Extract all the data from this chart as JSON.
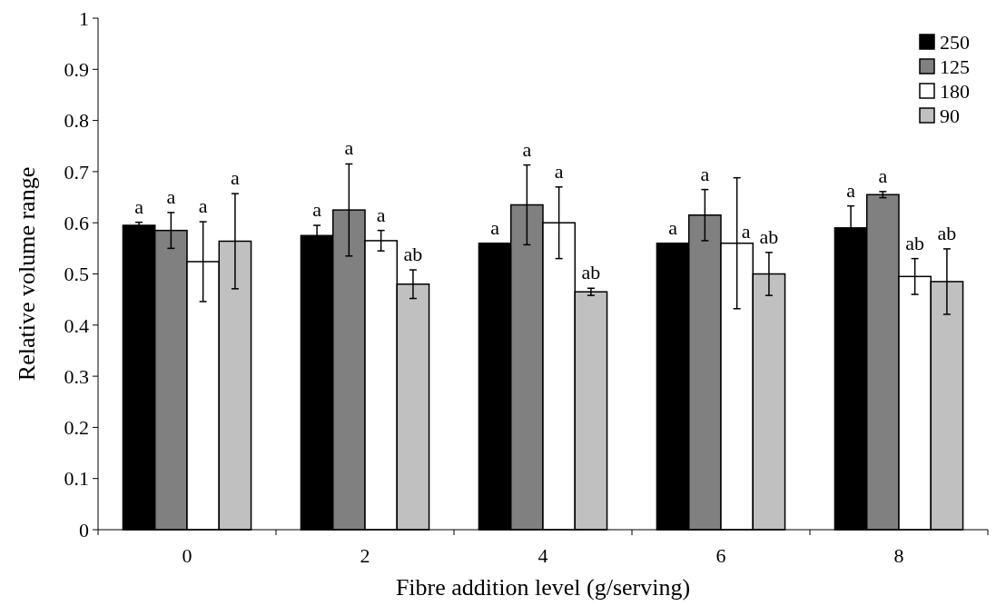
{
  "chart_data": {
    "type": "bar",
    "xlabel": "Fibre addition level (g/serving)",
    "ylabel": "Relative volume range",
    "categories": [
      "0",
      "2",
      "4",
      "6",
      "8"
    ],
    "series": [
      {
        "name": "250",
        "color": "#000000",
        "values": [
          0.595,
          0.575,
          0.56,
          0.56,
          0.59
        ],
        "errors": [
          0.006,
          0.02,
          null,
          null,
          0.043
        ],
        "value_labels": [
          "a",
          "a",
          "a",
          "a",
          "a"
        ]
      },
      {
        "name": "125",
        "color": "#808080",
        "values": [
          0.585,
          0.625,
          0.635,
          0.615,
          0.655
        ],
        "errors": [
          0.035,
          0.09,
          0.078,
          0.05,
          0.006
        ],
        "value_labels": [
          "a",
          "a",
          "a",
          "a",
          "a"
        ]
      },
      {
        "name": "180",
        "color": "#ffffff",
        "values": [
          0.524,
          0.565,
          0.6,
          0.56,
          0.495
        ],
        "errors": [
          0.078,
          0.02,
          0.07,
          0.128,
          0.035
        ],
        "value_labels": [
          "a",
          "a",
          "a",
          "a",
          "ab"
        ]
      },
      {
        "name": "90",
        "color": "#c0c0c0",
        "values": [
          0.564,
          0.48,
          0.465,
          0.5,
          0.485
        ],
        "errors": [
          0.093,
          0.028,
          0.007,
          0.042,
          0.064
        ],
        "value_labels": [
          "a",
          "ab",
          "ab",
          "ab",
          "ab"
        ]
      }
    ],
    "ylim": [
      0,
      1
    ],
    "yticks": [
      0,
      0.1,
      0.2,
      0.3,
      0.4,
      0.5,
      0.6,
      0.7,
      0.8,
      0.9,
      1
    ],
    "legend": "top right",
    "grid": false
  }
}
